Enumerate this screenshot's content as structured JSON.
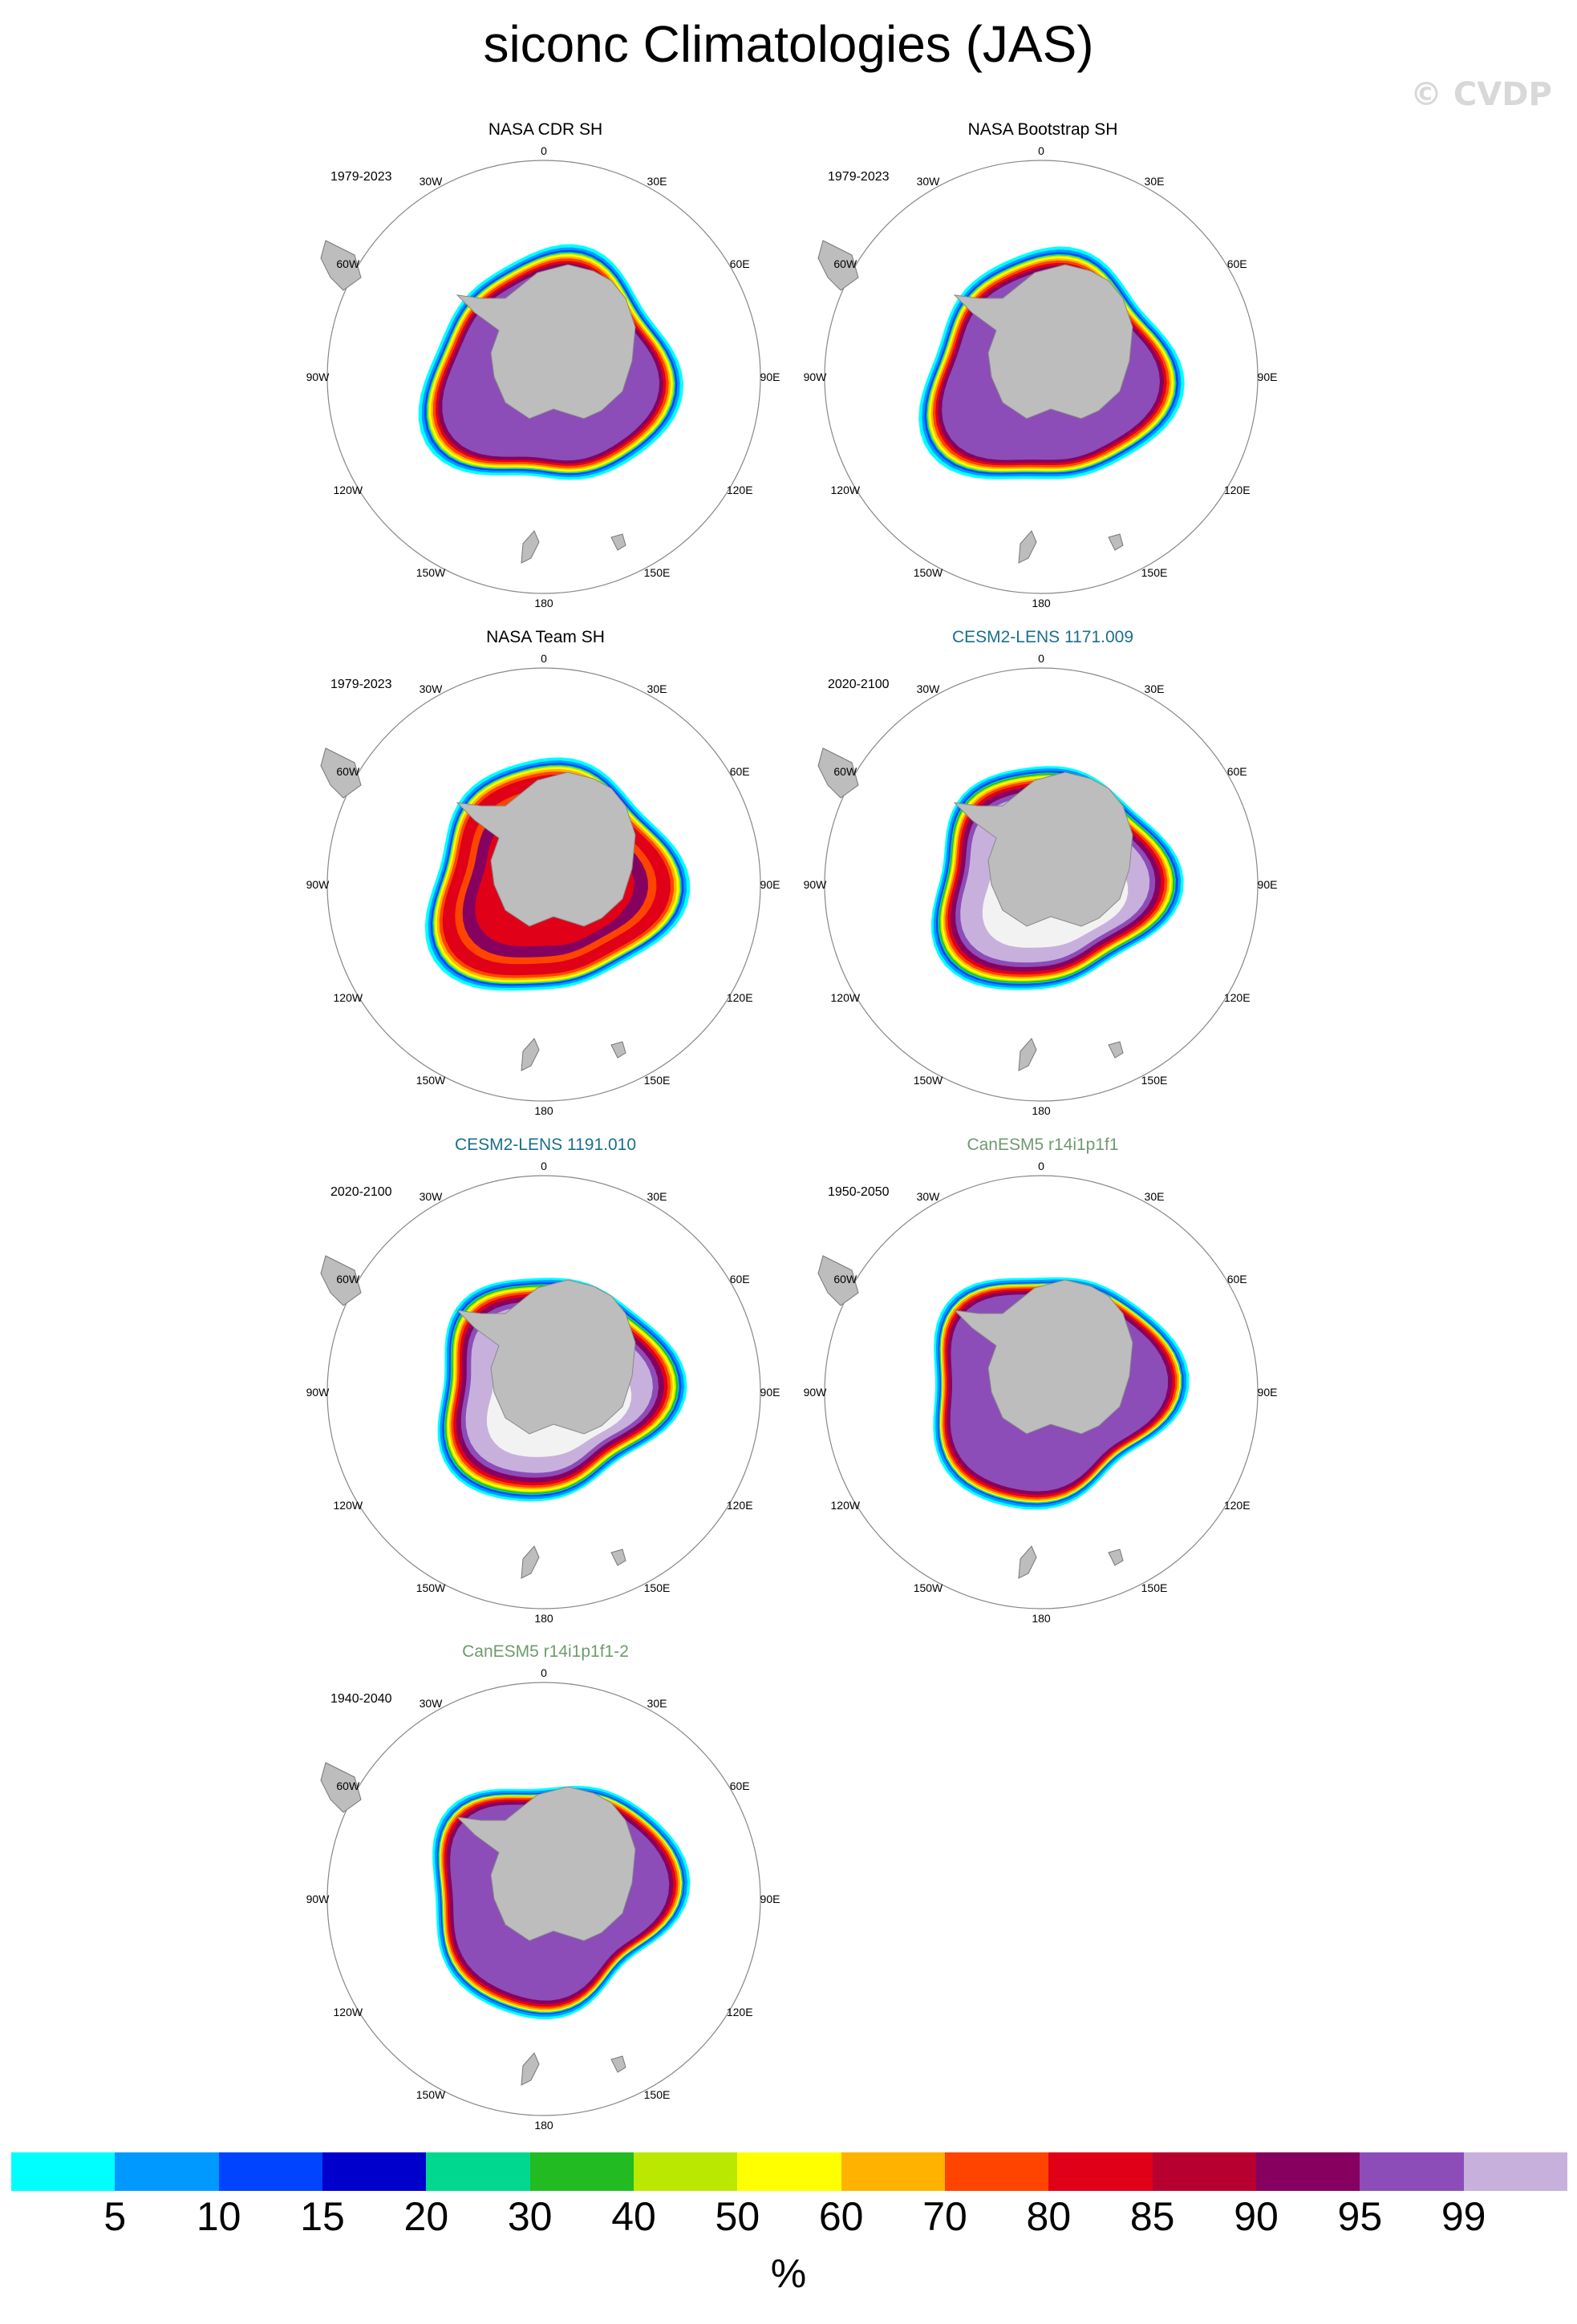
{
  "title": "siconc Climatologies (JAS)",
  "watermark": "© CVDP",
  "lon_labels": [
    "0",
    "30E",
    "60E",
    "90E",
    "120E",
    "150E",
    "180",
    "150W",
    "120W",
    "90W",
    "60W",
    "30W"
  ],
  "panels": [
    {
      "title": "NASA CDR SH",
      "title_color": "#000000",
      "period": "1979-2023",
      "style": "obs"
    },
    {
      "title": "NASA Bootstrap SH",
      "title_color": "#000000",
      "period": "1979-2023",
      "style": "obs"
    },
    {
      "title": "NASA Team SH",
      "title_color": "#000000",
      "period": "1979-2023",
      "style": "team"
    },
    {
      "title": "CESM2-LENS 1171.009",
      "title_color": "#1a6f8c",
      "period": "2020-2100",
      "style": "cesm"
    },
    {
      "title": "CESM2-LENS 1191.010",
      "title_color": "#1a6f8c",
      "period": "2020-2100",
      "style": "cesm"
    },
    {
      "title": "CanESM5 r14i1p1f1",
      "title_color": "#6f9a6f",
      "period": "1950-2050",
      "style": "can"
    },
    {
      "title": "CanESM5 r14i1p1f1-2",
      "title_color": "#6f9a6f",
      "period": "1940-2040",
      "style": "can"
    }
  ],
  "colorbar": {
    "colors": [
      "#00ffff",
      "#0099ff",
      "#0044ff",
      "#0000cc",
      "#00d890",
      "#22bb22",
      "#bbe800",
      "#ffff00",
      "#ffb300",
      "#ff4400",
      "#e00018",
      "#b80030",
      "#860060",
      "#8c4db8",
      "#c8b0dc"
    ],
    "ticks": [
      "5",
      "10",
      "15",
      "20",
      "30",
      "40",
      "50",
      "60",
      "70",
      "80",
      "85",
      "90",
      "95",
      "99"
    ],
    "units": "%"
  }
}
